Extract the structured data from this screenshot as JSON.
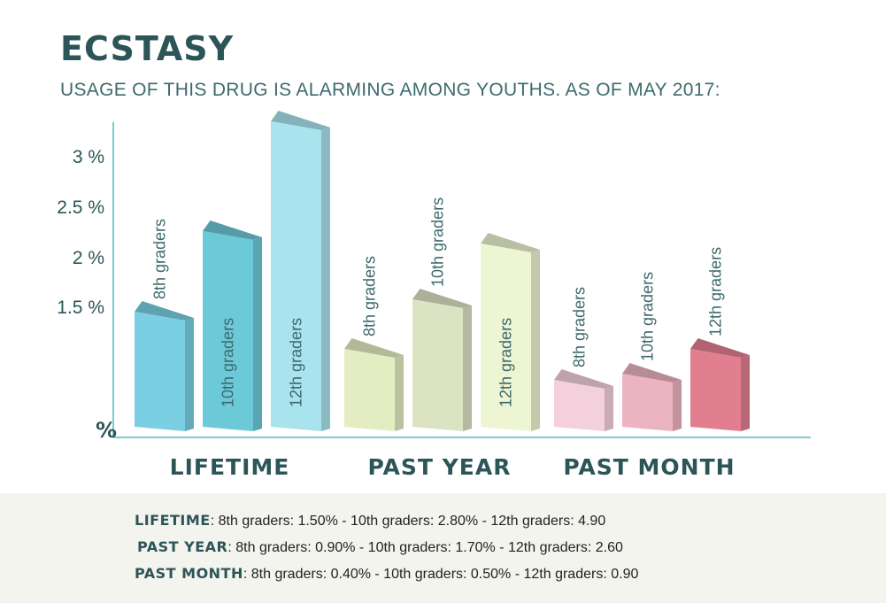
{
  "header": {
    "title": "ECSTASY",
    "subtitle": "USAGE OF THIS DRUG IS ALARMING AMONG YOUTHS. AS OF MAY 2017:"
  },
  "chart_data": {
    "type": "bar",
    "categories": [
      "LIFETIME",
      "PAST YEAR",
      "PAST MONTH"
    ],
    "series": [
      {
        "name": "8th graders",
        "values": [
          1.5,
          0.9,
          0.4
        ]
      },
      {
        "name": "10th graders",
        "values": [
          2.8,
          1.7,
          0.5
        ]
      },
      {
        "name": "12th graders",
        "values": [
          4.9,
          2.6,
          0.9
        ]
      }
    ],
    "yticks": [
      "3 %",
      "2.5 %",
      "2 %",
      "1.5 %"
    ],
    "ylabel": "%",
    "colors": {
      "LIFETIME": [
        "#7ad0e2",
        "#6cc9d8",
        "#a9e3ee"
      ],
      "PAST YEAR": [
        "#e4edc2",
        "#dbe3c3",
        "#edf5d3"
      ],
      "PAST MONTH": [
        "#f4d0dc",
        "#ecb3c1",
        "#e17f90"
      ]
    },
    "axis_color": "#7fc8d4",
    "label_color": "#2c5558"
  },
  "footer": {
    "lines": [
      {
        "key": "LIFETIME",
        "text": ": 8th graders: 1.50% - 10th graders: 2.80% - 12th graders: 4.90"
      },
      {
        "key": "PAST YEAR",
        "text": ": 8th graders: 0.90% - 10th graders: 1.70% - 12th graders: 2.60"
      },
      {
        "key": "PAST MONTH",
        "text": ": 8th graders: 0.40% - 10th graders: 0.50% - 12th graders: 0.90"
      }
    ]
  }
}
